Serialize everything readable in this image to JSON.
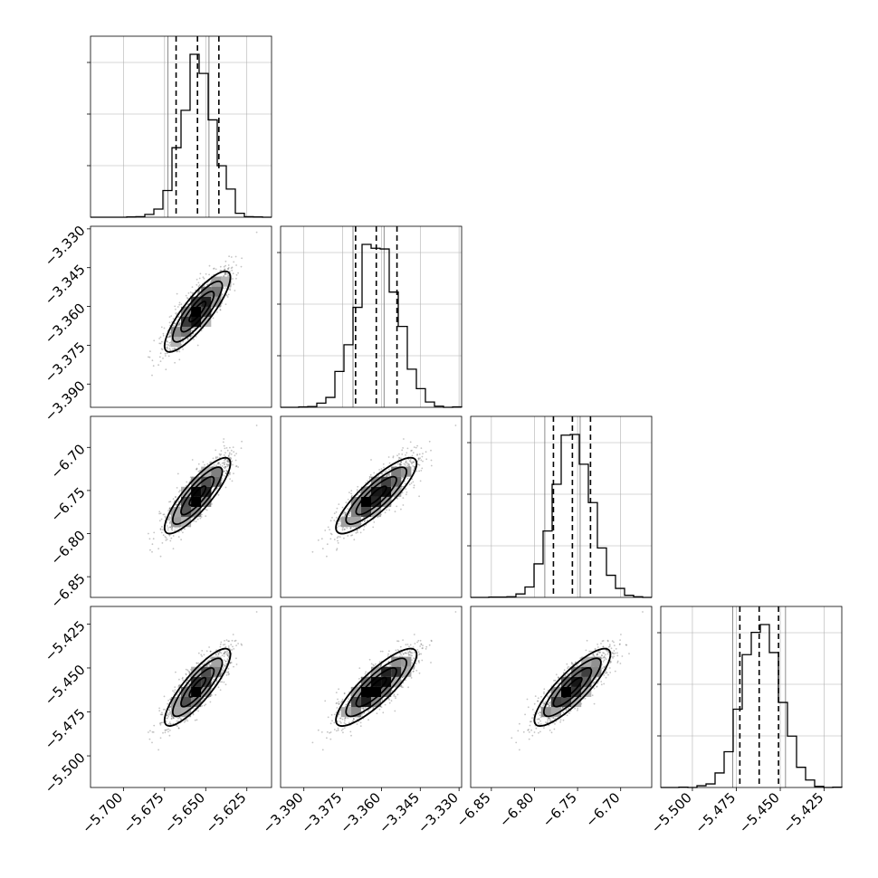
{
  "chart_data": {
    "type": "corner",
    "title": "",
    "parameters": [
      {
        "range": [
          -5.72,
          -5.61
        ],
        "ticks": [
          -5.7,
          -5.675,
          -5.65,
          -5.625
        ],
        "tick_labels": [
          "−5.700",
          "−5.675",
          "−5.650",
          "−5.625"
        ],
        "mean": -5.655,
        "sd": 0.01,
        "quantiles": [
          -5.668,
          -5.655,
          -5.642
        ],
        "truth": [
          -5.673,
          -5.648
        ]
      },
      {
        "range": [
          -3.399,
          -3.329
        ],
        "ticks": [
          -3.39,
          -3.375,
          -3.36,
          -3.345,
          -3.33
        ],
        "tick_labels": [
          "−3.390",
          "−3.375",
          "−3.360",
          "−3.345",
          "−3.330"
        ],
        "mean": -3.362,
        "sd": 0.0078,
        "quantiles": [
          -3.37,
          -3.362,
          -3.354
        ],
        "truth": [
          -3.371,
          -3.359
        ]
      },
      {
        "range": [
          -6.874,
          -6.664
        ],
        "ticks": [
          -6.85,
          -6.8,
          -6.75,
          -6.7
        ],
        "tick_labels": [
          "−6.85",
          "−6.80",
          "−6.75",
          "−6.70"
        ],
        "mean": -6.756,
        "sd": 0.022,
        "quantiles": [
          -6.778,
          -6.756,
          -6.735
        ],
        "truth": [
          -6.788,
          -6.747
        ]
      },
      {
        "range": [
          -5.518,
          -5.415
        ],
        "ticks": [
          -5.5,
          -5.475,
          -5.45,
          -5.425
        ],
        "tick_labels": [
          "−5.500",
          "−5.475",
          "−5.450",
          "−5.425"
        ],
        "mean": -5.461,
        "sd": 0.011,
        "quantiles": [
          -5.473,
          -5.462,
          -5.451
        ],
        "truth": [
          -5.477,
          -5.447
        ]
      }
    ],
    "correlation": 0.85,
    "grid": true,
    "colors": {
      "line": "#000000",
      "grid": "#b0b0b0",
      "points": "#555555"
    }
  }
}
